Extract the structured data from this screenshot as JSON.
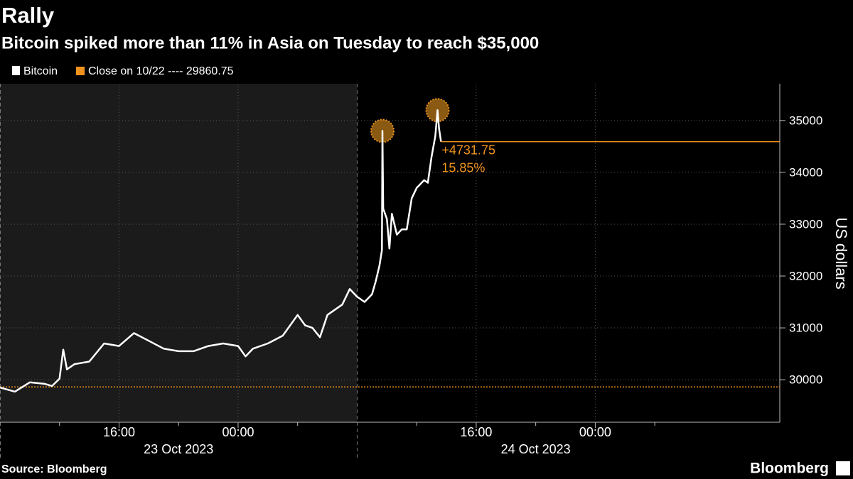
{
  "chart_data": {
    "type": "line",
    "title": "Rally",
    "subtitle": "Bitcoin spiked more than 11% in Asia on Tuesday to reach $35,000",
    "y_label": "US dollars",
    "source": "Source: Bloomberg",
    "brand": "Bloomberg",
    "series": [
      {
        "name": "Bitcoin",
        "color": "#ffffff",
        "x": [
          "2023-10-23T08:00",
          "2023-10-23T09:00",
          "2023-10-23T10:00",
          "2023-10-23T11:00",
          "2023-10-23T11:30",
          "2023-10-23T12:00",
          "2023-10-23T12:15",
          "2023-10-23T12:30",
          "2023-10-23T13:00",
          "2023-10-23T14:00",
          "2023-10-23T15:00",
          "2023-10-23T16:00",
          "2023-10-23T17:00",
          "2023-10-23T18:00",
          "2023-10-23T19:00",
          "2023-10-23T20:00",
          "2023-10-23T21:00",
          "2023-10-23T22:00",
          "2023-10-23T23:00",
          "2023-10-24T00:00",
          "2023-10-24T00:30",
          "2023-10-24T01:00",
          "2023-10-24T02:00",
          "2023-10-24T03:00",
          "2023-10-24T04:00",
          "2023-10-24T04:30",
          "2023-10-24T05:00",
          "2023-10-24T05:30",
          "2023-10-24T06:00",
          "2023-10-24T07:00",
          "2023-10-24T07:30",
          "2023-10-24T08:00",
          "2023-10-24T08:30",
          "2023-10-24T09:00",
          "2023-10-24T09:15",
          "2023-10-24T09:30",
          "2023-10-24T09:40",
          "2023-10-24T09:42",
          "2023-10-24T09:45",
          "2023-10-24T10:00",
          "2023-10-24T10:10",
          "2023-10-24T10:20",
          "2023-10-24T10:40",
          "2023-10-24T11:00",
          "2023-10-24T11:20",
          "2023-10-24T11:40",
          "2023-10-24T12:00",
          "2023-10-24T12:30",
          "2023-10-24T12:45",
          "2023-10-24T13:00",
          "2023-10-24T13:15",
          "2023-10-24T13:24",
          "2023-10-24T13:30",
          "2023-10-24T13:38"
        ],
        "values": [
          29850,
          29770,
          29950,
          29920,
          29880,
          30020,
          30580,
          30200,
          30300,
          30350,
          30700,
          30650,
          30900,
          30750,
          30600,
          30550,
          30550,
          30650,
          30700,
          30650,
          30450,
          30600,
          30700,
          30850,
          31250,
          31050,
          31000,
          30820,
          31250,
          31450,
          31750,
          31600,
          31500,
          31650,
          31900,
          32200,
          32500,
          34800,
          33300,
          33100,
          32530,
          33200,
          32800,
          32900,
          32900,
          33500,
          33700,
          33850,
          33800,
          34300,
          34700,
          35200,
          34850,
          34592.5
        ]
      }
    ],
    "highlights": [
      {
        "x": "2023-10-24T09:42",
        "y": 34800
      },
      {
        "x": "2023-10-24T13:24",
        "y": 35200
      }
    ],
    "reference": {
      "label": "Close on 10/22 ---- 29860.75",
      "value": 29860.75,
      "color": "#f0931e"
    },
    "annotations": [
      "+4731.75",
      "15.85%"
    ],
    "shaded_until": "2023-10-24T08:00",
    "xlim": [
      "2023-10-23T08:00",
      "2023-10-25T12:24"
    ],
    "xticks": [
      {
        "value": "2023-10-23T16:00",
        "label": "16:00"
      },
      {
        "value": "2023-10-24T00:00",
        "label": "00:00"
      },
      {
        "value": "2023-10-24T16:00",
        "label": "16:00"
      },
      {
        "value": "2023-10-25T00:00",
        "label": "00:00"
      }
    ],
    "minor_xticks": [
      "2023-10-23T12:00",
      "2023-10-23T20:00",
      "2023-10-24T04:00",
      "2023-10-24T12:00",
      "2023-10-24T20:00",
      "2023-10-25T04:00"
    ],
    "date_labels": [
      {
        "value": "2023-10-23T20:00",
        "label": "23 Oct 2023"
      },
      {
        "value": "2023-10-24T20:00",
        "label": "24 Oct 2023"
      }
    ],
    "ylim": [
      29180,
      35710
    ],
    "yticks": [
      30000,
      31000,
      32000,
      33000,
      34000,
      35000
    ],
    "grid": true
  }
}
